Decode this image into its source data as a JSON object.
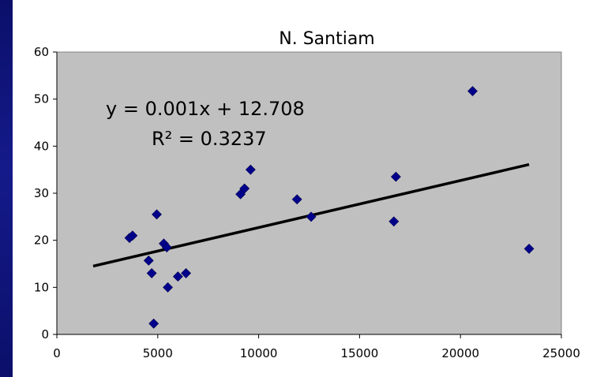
{
  "chart_data": {
    "type": "scatter",
    "title": "N. Santiam",
    "xlabel": "",
    "ylabel": "",
    "xlim": [
      0,
      25000
    ],
    "ylim": [
      0,
      60
    ],
    "x_ticks": [
      0,
      5000,
      10000,
      15000,
      20000,
      25000
    ],
    "y_ticks": [
      0,
      10,
      20,
      30,
      40,
      50,
      60
    ],
    "x_tick_labels": [
      "0",
      "5000",
      "10000",
      "15000",
      "20000",
      "25000"
    ],
    "y_tick_labels": [
      "0",
      "10",
      "20",
      "30",
      "40",
      "50",
      "60"
    ],
    "grid": false,
    "plot_background": "#c0c0c0",
    "marker_color": "#00008b",
    "trendline_color": "#000000",
    "series": [
      {
        "points": [
          {
            "x": 3600,
            "y": 20.5
          },
          {
            "x": 3750,
            "y": 21
          },
          {
            "x": 4550,
            "y": 15.7
          },
          {
            "x": 4700,
            "y": 13
          },
          {
            "x": 4800,
            "y": 2.3
          },
          {
            "x": 4950,
            "y": 25.5
          },
          {
            "x": 5300,
            "y": 19.3
          },
          {
            "x": 5450,
            "y": 18.5
          },
          {
            "x": 5500,
            "y": 10
          },
          {
            "x": 6000,
            "y": 12.3
          },
          {
            "x": 6400,
            "y": 13
          },
          {
            "x": 9100,
            "y": 29.8
          },
          {
            "x": 9300,
            "y": 31
          },
          {
            "x": 9600,
            "y": 35
          },
          {
            "x": 11900,
            "y": 28.7
          },
          {
            "x": 12600,
            "y": 25
          },
          {
            "x": 16700,
            "y": 24
          },
          {
            "x": 16800,
            "y": 33.5
          },
          {
            "x": 20600,
            "y": 51.7
          },
          {
            "x": 23400,
            "y": 18.2
          }
        ]
      }
    ],
    "trendline": {
      "x_start": 1800,
      "x_end": 23400,
      "slope": 0.001,
      "intercept": 12.708,
      "equation_label": "y = 0.001x + 12.708",
      "r2_label": "R² = 0.3237"
    }
  }
}
